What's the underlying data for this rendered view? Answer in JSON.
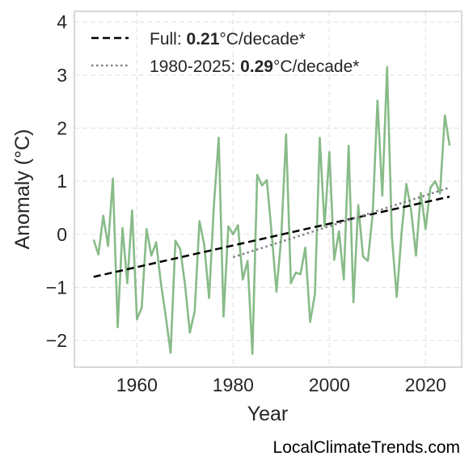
{
  "chart_data": {
    "type": "line",
    "xlabel": "Year",
    "ylabel": "Anomaly (°C)",
    "xlim": [
      1947,
      2027.5
    ],
    "ylim": [
      -2.5,
      4.2
    ],
    "x_ticks": [
      1960,
      1980,
      2000,
      2020
    ],
    "x_tick_labels": [
      "1960",
      "1980",
      "2000",
      "2020"
    ],
    "y_ticks": [
      -2,
      -1,
      0,
      1,
      2,
      3,
      4
    ],
    "y_tick_labels": [
      "−2",
      "−1",
      "0",
      "1",
      "2",
      "3",
      "4"
    ],
    "grid": true,
    "legend_position": "top-left",
    "series": [
      {
        "kind": "data",
        "color": "#88bb88",
        "x": [
          1951,
          1952,
          1953,
          1954,
          1955,
          1956,
          1957,
          1958,
          1959,
          1960,
          1961,
          1962,
          1963,
          1964,
          1965,
          1966,
          1967,
          1968,
          1969,
          1970,
          1971,
          1972,
          1973,
          1974,
          1975,
          1976,
          1977,
          1978,
          1979,
          1980,
          1981,
          1982,
          1983,
          1984,
          1985,
          1986,
          1987,
          1988,
          1989,
          1990,
          1991,
          1992,
          1993,
          1994,
          1995,
          1996,
          1997,
          1998,
          1999,
          2000,
          2001,
          2002,
          2003,
          2004,
          2005,
          2006,
          2007,
          2008,
          2009,
          2010,
          2011,
          2012,
          2013,
          2014,
          2015,
          2016,
          2017,
          2018,
          2019,
          2020,
          2021,
          2022,
          2023,
          2024,
          2025
        ],
        "values": [
          -0.1,
          -0.38,
          0.35,
          -0.22,
          1.05,
          -1.75,
          0.12,
          -0.92,
          0.45,
          -1.6,
          -1.38,
          0.1,
          -0.4,
          -0.15,
          -0.93,
          -1.55,
          -2.23,
          -0.12,
          -0.28,
          -0.95,
          -1.85,
          -1.45,
          0.25,
          -0.2,
          -1.2,
          0.55,
          1.82,
          -1.55,
          0.15,
          0.0,
          0.17,
          -0.85,
          -0.5,
          -2.25,
          1.12,
          0.92,
          1.02,
          0.02,
          -1.08,
          -0.05,
          1.88,
          -0.92,
          -0.72,
          -0.75,
          -0.25,
          -1.65,
          -1.12,
          1.82,
          0.15,
          1.55,
          -0.48,
          0.06,
          -0.85,
          1.67,
          -1.28,
          0.55,
          -0.42,
          -0.5,
          0.38,
          2.52,
          0.73,
          3.15,
          -0.05,
          -1.18,
          0.02,
          0.95,
          0.45,
          -0.4,
          0.78,
          0.1,
          0.88,
          1.0,
          0.77,
          2.24,
          1.67
        ]
      },
      {
        "kind": "trend",
        "color": "#000000",
        "dash": "dashed",
        "x": [
          1951,
          2025
        ],
        "values": [
          -0.8,
          0.71
        ],
        "legend_label": "Full: ",
        "legend_value": "0.21",
        "legend_unit": "°C/decade*"
      },
      {
        "kind": "trend",
        "color": "#808080",
        "dash": "dotted",
        "x": [
          1980,
          2025
        ],
        "values": [
          -0.43,
          0.88
        ],
        "legend_label": "1980-2025: ",
        "legend_value": "0.29",
        "legend_unit": "°C/decade*"
      }
    ]
  },
  "credit": "LocalClimateTrends.com"
}
